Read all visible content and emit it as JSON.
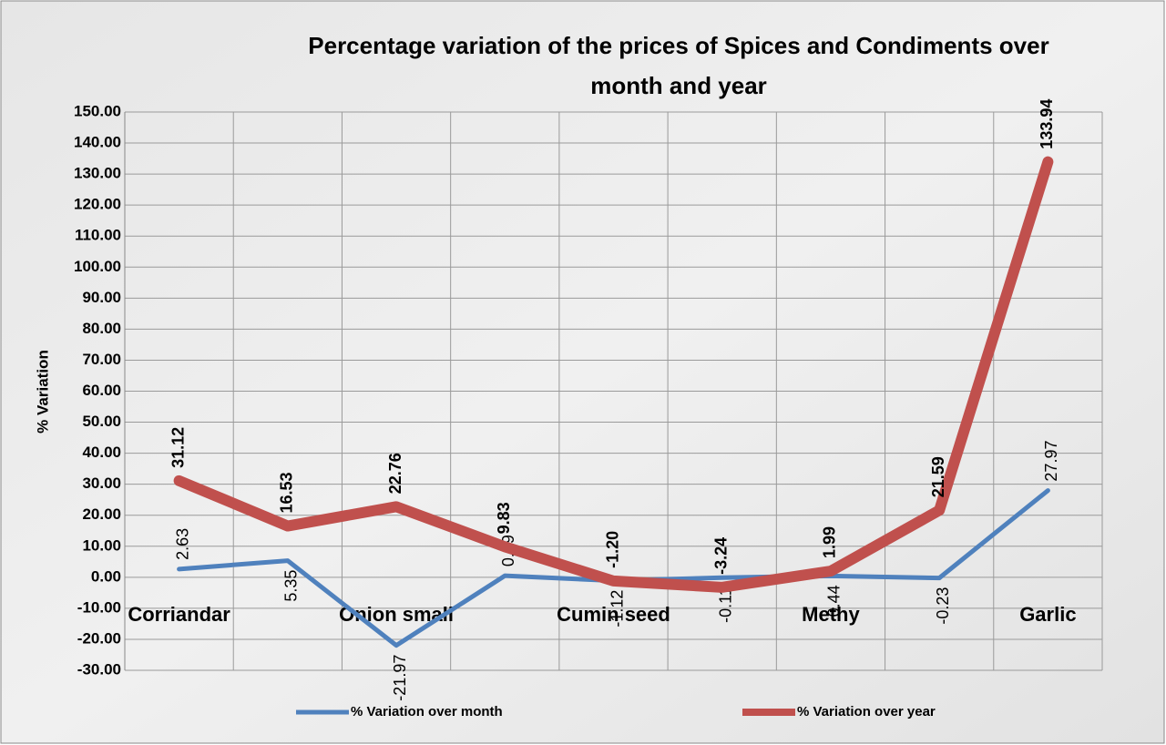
{
  "chart_data": {
    "type": "line",
    "title": "Percentage variation of the prices of Spices and Condiments over month and year",
    "y_label": "% Variation",
    "categories": [
      "Corriandar",
      null,
      "Onion small",
      null,
      "Cumin seed",
      null,
      "Methy",
      null,
      "Garlic"
    ],
    "series": [
      {
        "name": "% Variation over month",
        "color": "#4f81bd",
        "values": [
          2.63,
          5.35,
          -21.97,
          0.49,
          -1.12,
          -0.11,
          0.44,
          -0.23,
          27.97
        ],
        "value_labels": [
          "2.63",
          "5.35",
          "-21.97",
          "0.49",
          "-1.12",
          "-0.11",
          "0.44",
          "-0.23",
          "27.97"
        ]
      },
      {
        "name": "% Variation over year",
        "color": "#c0504d",
        "values": [
          31.12,
          16.53,
          22.76,
          9.83,
          -1.2,
          -3.24,
          1.99,
          21.59,
          133.94
        ],
        "value_labels": [
          "31.12",
          "16.53",
          "22.76",
          "9.83",
          "-1.20",
          "-3.24",
          "1.99",
          "21.59",
          "133.94"
        ]
      }
    ],
    "ylim": [
      -30,
      150
    ],
    "yticks": [
      {
        "value": -30,
        "label": "-30.00"
      },
      {
        "value": -20,
        "label": "-20.00"
      },
      {
        "value": -10,
        "label": "-10.00"
      },
      {
        "value": 0,
        "label": "0.00"
      },
      {
        "value": 10,
        "label": "10.00"
      },
      {
        "value": 20,
        "label": "20.00"
      },
      {
        "value": 30,
        "label": "30.00"
      },
      {
        "value": 40,
        "label": "40.00"
      },
      {
        "value": 50,
        "label": "50.00"
      },
      {
        "value": 60,
        "label": "60.00"
      },
      {
        "value": 70,
        "label": "70.00"
      },
      {
        "value": 80,
        "label": "80.00"
      },
      {
        "value": 90,
        "label": "90.00"
      },
      {
        "value": 100,
        "label": "100.00"
      },
      {
        "value": 110,
        "label": "110.00"
      },
      {
        "value": 120,
        "label": "120.00"
      },
      {
        "value": 130,
        "label": "130.00"
      },
      {
        "value": 140,
        "label": "140.00"
      },
      {
        "value": 150,
        "label": "150.00"
      }
    ],
    "grid": true,
    "legend": "bottom"
  }
}
